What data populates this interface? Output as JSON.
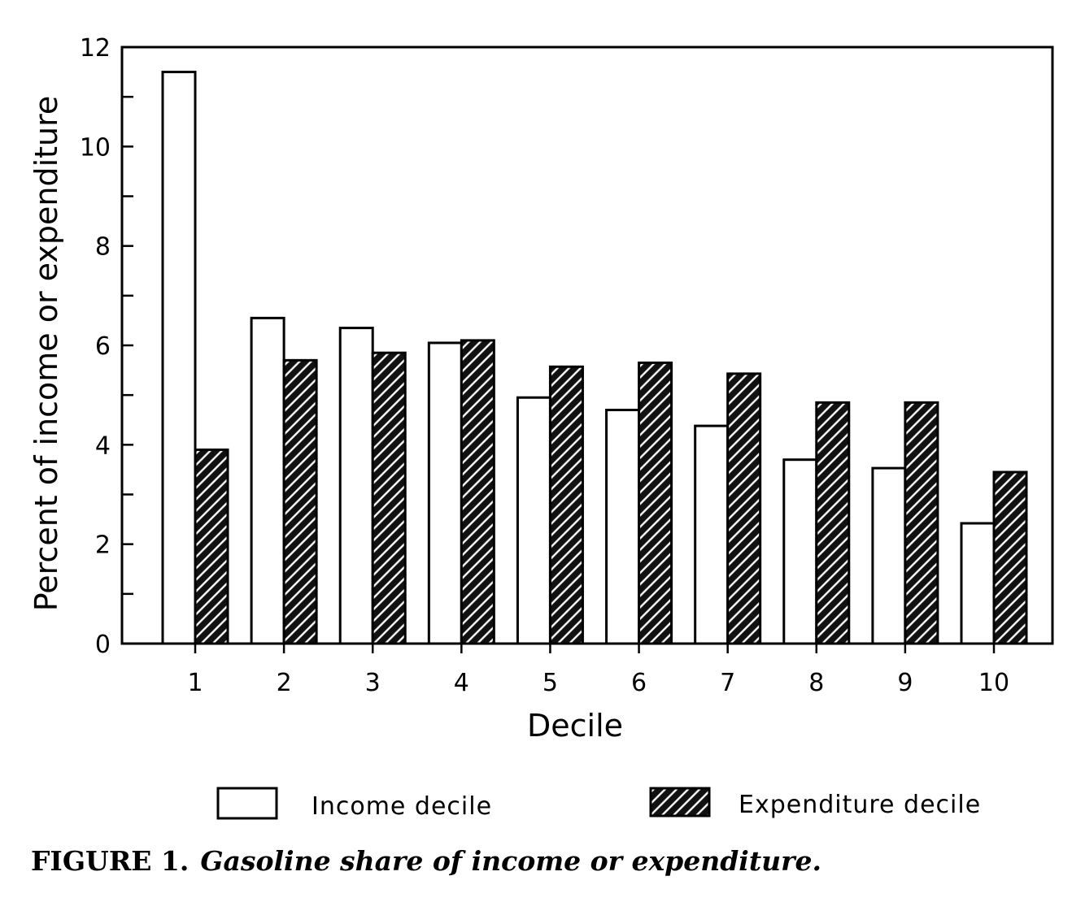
{
  "chart_data": {
    "type": "bar",
    "xlabel": "Decile",
    "ylabel": "Percent of income or expenditure",
    "categories": [
      "1",
      "2",
      "3",
      "4",
      "5",
      "6",
      "7",
      "8",
      "9",
      "10"
    ],
    "ylim": [
      0,
      12
    ],
    "yticks": [
      "0",
      "2",
      "4",
      "6",
      "8",
      "10",
      "12"
    ],
    "grid": false,
    "legend_position": "bottom",
    "series": [
      {
        "name": "Income decile",
        "style": "open",
        "fill_color": "#ffffff",
        "values": [
          11.5,
          6.55,
          6.35,
          6.05,
          4.95,
          4.7,
          4.38,
          3.7,
          3.53,
          2.42
        ]
      },
      {
        "name": "Expenditure decile",
        "style": "hatched",
        "fill_color": "#000000",
        "values": [
          3.9,
          5.7,
          5.85,
          6.1,
          5.57,
          5.65,
          5.43,
          4.85,
          4.85,
          3.45
        ]
      }
    ]
  },
  "caption": {
    "label": "FIGURE 1.",
    "text": "Gasoline share of income or expenditure."
  }
}
